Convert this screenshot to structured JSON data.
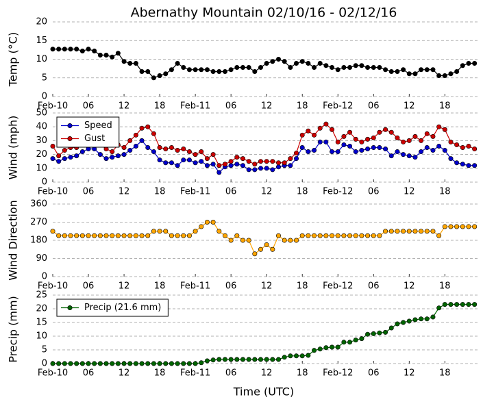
{
  "chart_data": [
    {
      "type": "line",
      "title": "Abernathy Mountain 02/10/16 - 02/12/16",
      "ylabel": "Temp (°C)",
      "x": [
        0,
        1,
        2,
        3,
        4,
        5,
        6,
        7,
        8,
        9,
        10,
        11,
        12,
        13,
        14,
        15,
        16,
        17,
        18,
        19,
        20,
        21,
        22,
        23,
        24,
        25,
        26,
        27,
        28,
        29,
        30,
        31,
        32,
        33,
        34,
        35,
        36,
        37,
        38,
        39,
        40,
        41,
        42,
        43,
        44,
        45,
        46,
        47,
        48,
        49,
        50,
        51,
        52,
        53,
        54,
        55,
        56,
        57,
        58,
        59,
        60,
        61,
        62,
        63,
        64,
        65,
        66,
        67,
        68,
        69,
        70,
        71
      ],
      "xlim": [
        0,
        71.5
      ],
      "xticks": [
        {
          "value": 0,
          "label": "Feb-10"
        },
        {
          "value": 6,
          "label": "06"
        },
        {
          "value": 12,
          "label": "12"
        },
        {
          "value": 18,
          "label": "18"
        },
        {
          "value": 24,
          "label": "Feb-11"
        },
        {
          "value": 30,
          "label": "06"
        },
        {
          "value": 36,
          "label": "12"
        },
        {
          "value": 42,
          "label": "18"
        },
        {
          "value": 48,
          "label": "Feb-12"
        },
        {
          "value": 54,
          "label": "06"
        },
        {
          "value": 60,
          "label": "12"
        },
        {
          "value": 66,
          "label": "18"
        }
      ],
      "ylim": [
        0,
        20
      ],
      "yticks": [
        0,
        5,
        10,
        15,
        20
      ],
      "grid": true,
      "series": [
        {
          "color": "#000000",
          "values": [
            12.7,
            12.7,
            12.7,
            12.7,
            12.7,
            12.2,
            12.7,
            12.2,
            11.1,
            11.1,
            10.6,
            11.6,
            9.4,
            8.9,
            8.9,
            6.7,
            6.7,
            5,
            5.6,
            6.1,
            7.2,
            8.9,
            7.8,
            7.2,
            7.2,
            7.2,
            7.2,
            6.7,
            6.7,
            6.7,
            7.2,
            7.8,
            7.8,
            7.8,
            6.7,
            7.8,
            8.9,
            9.4,
            10,
            9.4,
            7.8,
            8.9,
            9.4,
            8.9,
            7.8,
            8.9,
            8.3,
            7.8,
            7.2,
            7.8,
            7.8,
            8.3,
            8.3,
            7.8,
            7.8,
            7.8,
            7.2,
            6.7,
            6.7,
            7.2,
            6.1,
            6.1,
            7.2,
            7.2,
            7.2,
            5.6,
            5.6,
            6.1,
            6.7,
            8.3,
            8.9,
            8.9
          ]
        }
      ]
    },
    {
      "type": "line",
      "ylabel": "Wind (mph)",
      "x": [
        0,
        1,
        2,
        3,
        4,
        5,
        6,
        7,
        8,
        9,
        10,
        11,
        12,
        13,
        14,
        15,
        16,
        17,
        18,
        19,
        20,
        21,
        22,
        23,
        24,
        25,
        26,
        27,
        28,
        29,
        30,
        31,
        32,
        33,
        34,
        35,
        36,
        37,
        38,
        39,
        40,
        41,
        42,
        43,
        44,
        45,
        46,
        47,
        48,
        49,
        50,
        51,
        52,
        53,
        54,
        55,
        56,
        57,
        58,
        59,
        60,
        61,
        62,
        63,
        64,
        65,
        66,
        67,
        68,
        69,
        70,
        71
      ],
      "xlim": [
        0,
        71.5
      ],
      "xticks": [
        {
          "value": 0,
          "label": "Feb-10"
        },
        {
          "value": 6,
          "label": "06"
        },
        {
          "value": 12,
          "label": "12"
        },
        {
          "value": 18,
          "label": "18"
        },
        {
          "value": 24,
          "label": "Feb-11"
        },
        {
          "value": 30,
          "label": "06"
        },
        {
          "value": 36,
          "label": "12"
        },
        {
          "value": 42,
          "label": "18"
        },
        {
          "value": 48,
          "label": "Feb-12"
        },
        {
          "value": 54,
          "label": "06"
        },
        {
          "value": 60,
          "label": "12"
        },
        {
          "value": 66,
          "label": "18"
        }
      ],
      "ylim": [
        0,
        50
      ],
      "yticks": [
        0,
        10,
        20,
        30,
        40,
        50
      ],
      "grid": true,
      "legend": "upper left",
      "series": [
        {
          "name": "Speed",
          "color": "#0000cc",
          "values": [
            17,
            15,
            17,
            18,
            19,
            22,
            24,
            24,
            20,
            17,
            18,
            19,
            20,
            23,
            26,
            30,
            25,
            22,
            16,
            14,
            14,
            12,
            16,
            16,
            14,
            15,
            12,
            13,
            7,
            11,
            12,
            13,
            12,
            9,
            9,
            10,
            10,
            9,
            11,
            12,
            12,
            17,
            25,
            22,
            23,
            29,
            29,
            22,
            22,
            27,
            26,
            22,
            23,
            24,
            25,
            25,
            24,
            19,
            22,
            20,
            19,
            18,
            22,
            25,
            23,
            26,
            23,
            17,
            14,
            13,
            12,
            12
          ]
        },
        {
          "name": "Gust",
          "color": "#cc0000",
          "values": [
            26,
            19,
            23,
            25,
            25,
            27,
            27,
            27,
            27,
            24,
            22,
            27,
            25,
            30,
            34,
            39,
            40,
            35,
            25,
            24,
            25,
            23,
            24,
            22,
            20,
            22,
            17,
            20,
            12,
            13,
            15,
            18,
            17,
            15,
            13,
            15,
            15,
            15,
            14,
            14,
            17,
            21,
            34,
            37,
            34,
            39,
            42,
            38,
            29,
            33,
            36,
            31,
            29,
            31,
            32,
            36,
            38,
            36,
            32,
            29,
            30,
            33,
            30,
            35,
            33,
            40,
            38,
            29,
            27,
            25,
            26,
            24
          ]
        }
      ]
    },
    {
      "type": "line",
      "ylabel": "Wind Direction",
      "x": [
        0,
        1,
        2,
        3,
        4,
        5,
        6,
        7,
        8,
        9,
        10,
        11,
        12,
        13,
        14,
        15,
        16,
        17,
        18,
        19,
        20,
        21,
        22,
        23,
        24,
        25,
        26,
        27,
        28,
        29,
        30,
        31,
        32,
        33,
        34,
        35,
        36,
        37,
        38,
        39,
        40,
        41,
        42,
        43,
        44,
        45,
        46,
        47,
        48,
        49,
        50,
        51,
        52,
        53,
        54,
        55,
        56,
        57,
        58,
        59,
        60,
        61,
        62,
        63,
        64,
        65,
        66,
        67,
        68,
        69,
        70,
        71
      ],
      "xlim": [
        0,
        71.5
      ],
      "xticks": [
        {
          "value": 0,
          "label": "Feb-10"
        },
        {
          "value": 6,
          "label": "06"
        },
        {
          "value": 12,
          "label": "12"
        },
        {
          "value": 18,
          "label": "18"
        },
        {
          "value": 24,
          "label": "Feb-11"
        },
        {
          "value": 30,
          "label": "06"
        },
        {
          "value": 36,
          "label": "12"
        },
        {
          "value": 42,
          "label": "18"
        },
        {
          "value": 48,
          "label": "Feb-12"
        },
        {
          "value": 54,
          "label": "06"
        },
        {
          "value": 60,
          "label": "12"
        },
        {
          "value": 66,
          "label": "18"
        }
      ],
      "ylim": [
        0,
        360
      ],
      "yticks": [
        0,
        90,
        180,
        270,
        360
      ],
      "grid": true,
      "series": [
        {
          "color": "#ffa500",
          "values": [
            225,
            203,
            203,
            203,
            203,
            203,
            203,
            203,
            203,
            203,
            203,
            203,
            203,
            203,
            203,
            203,
            203,
            225,
            225,
            225,
            203,
            203,
            203,
            203,
            225,
            248,
            270,
            270,
            225,
            203,
            180,
            203,
            180,
            180,
            113,
            135,
            158,
            135,
            203,
            180,
            180,
            180,
            203,
            203,
            203,
            203,
            203,
            203,
            203,
            203,
            203,
            203,
            203,
            203,
            203,
            203,
            225,
            225,
            225,
            225,
            225,
            225,
            225,
            225,
            225,
            203,
            248,
            248,
            248,
            248,
            248,
            248
          ]
        }
      ]
    },
    {
      "type": "line",
      "ylabel": "Precip (mm)",
      "xlabel": "Time (UTC)",
      "x": [
        0,
        1,
        2,
        3,
        4,
        5,
        6,
        7,
        8,
        9,
        10,
        11,
        12,
        13,
        14,
        15,
        16,
        17,
        18,
        19,
        20,
        21,
        22,
        23,
        24,
        25,
        26,
        27,
        28,
        29,
        30,
        31,
        32,
        33,
        34,
        35,
        36,
        37,
        38,
        39,
        40,
        41,
        42,
        43,
        44,
        45,
        46,
        47,
        48,
        49,
        50,
        51,
        52,
        53,
        54,
        55,
        56,
        57,
        58,
        59,
        60,
        61,
        62,
        63,
        64,
        65,
        66,
        67,
        68,
        69,
        70,
        71
      ],
      "xlim": [
        0,
        71.5
      ],
      "xticks": [
        {
          "value": 0,
          "label": "Feb-10"
        },
        {
          "value": 6,
          "label": "06"
        },
        {
          "value": 12,
          "label": "12"
        },
        {
          "value": 18,
          "label": "18"
        },
        {
          "value": 24,
          "label": "Feb-11"
        },
        {
          "value": 30,
          "label": "06"
        },
        {
          "value": 36,
          "label": "12"
        },
        {
          "value": 42,
          "label": "18"
        },
        {
          "value": 48,
          "label": "Feb-12"
        },
        {
          "value": 54,
          "label": "06"
        },
        {
          "value": 60,
          "label": "12"
        },
        {
          "value": 66,
          "label": "18"
        }
      ],
      "ylim": [
        0,
        25
      ],
      "yticks": [
        0,
        5,
        10,
        15,
        20,
        25
      ],
      "grid": true,
      "legend": "upper left",
      "series": [
        {
          "name": "Precip (21.6 mm)",
          "color": "#006400",
          "values": [
            0,
            0,
            0,
            0,
            0,
            0,
            0,
            0,
            0,
            0,
            0,
            0,
            0,
            0,
            0,
            0,
            0,
            0,
            0,
            0,
            0,
            0,
            0,
            0,
            0,
            0.3,
            1.0,
            1.3,
            1.5,
            1.5,
            1.5,
            1.5,
            1.5,
            1.5,
            1.5,
            1.5,
            1.5,
            1.5,
            1.5,
            2.3,
            2.8,
            2.8,
            2.8,
            3.0,
            4.8,
            5.3,
            5.8,
            6.0,
            6.0,
            7.8,
            7.8,
            8.6,
            9.1,
            10.7,
            10.9,
            11.2,
            11.4,
            13.0,
            14.5,
            15.0,
            15.5,
            16.0,
            16.3,
            16.3,
            17.0,
            20.3,
            21.6,
            21.6,
            21.6,
            21.6,
            21.6,
            21.6
          ]
        }
      ]
    }
  ]
}
